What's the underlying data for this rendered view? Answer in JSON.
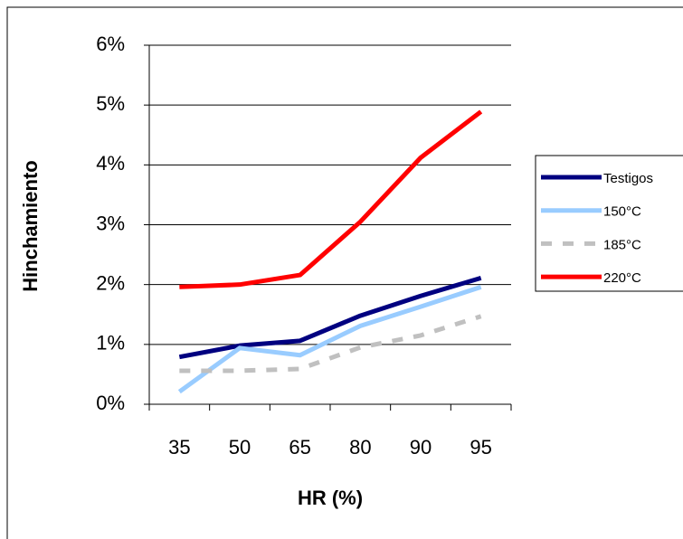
{
  "chart_data": {
    "type": "line",
    "x_label": "HR (%)",
    "y_label": "Hinchamiento",
    "categories": [
      "35",
      "50",
      "65",
      "80",
      "90",
      "95"
    ],
    "series": [
      {
        "name": "Testigos",
        "color": "#000080",
        "values": [
          0.79,
          0.98,
          1.06,
          1.48,
          1.81,
          2.11
        ]
      },
      {
        "name": "150°C",
        "color": "#99ccff",
        "values": [
          0.21,
          0.94,
          0.82,
          1.31,
          1.63,
          1.96
        ]
      },
      {
        "name": "185°C",
        "color": "#c0c0c0",
        "dashed": true,
        "values": [
          0.56,
          0.56,
          0.59,
          0.95,
          1.15,
          1.47
        ]
      },
      {
        "name": "220°C",
        "color": "#ff0000",
        "values": [
          1.96,
          2.0,
          2.16,
          3.05,
          4.12,
          4.89
        ]
      }
    ],
    "ylim": [
      0,
      6
    ],
    "yticks": [
      {
        "value": 0,
        "label": "0%"
      },
      {
        "value": 1,
        "label": "1%"
      },
      {
        "value": 2,
        "label": "2%"
      },
      {
        "value": 3,
        "label": "3%"
      },
      {
        "value": 4,
        "label": "4%"
      },
      {
        "value": 5,
        "label": "5%"
      },
      {
        "value": 6,
        "label": "6%"
      }
    ],
    "grid": true,
    "legend": "right"
  }
}
